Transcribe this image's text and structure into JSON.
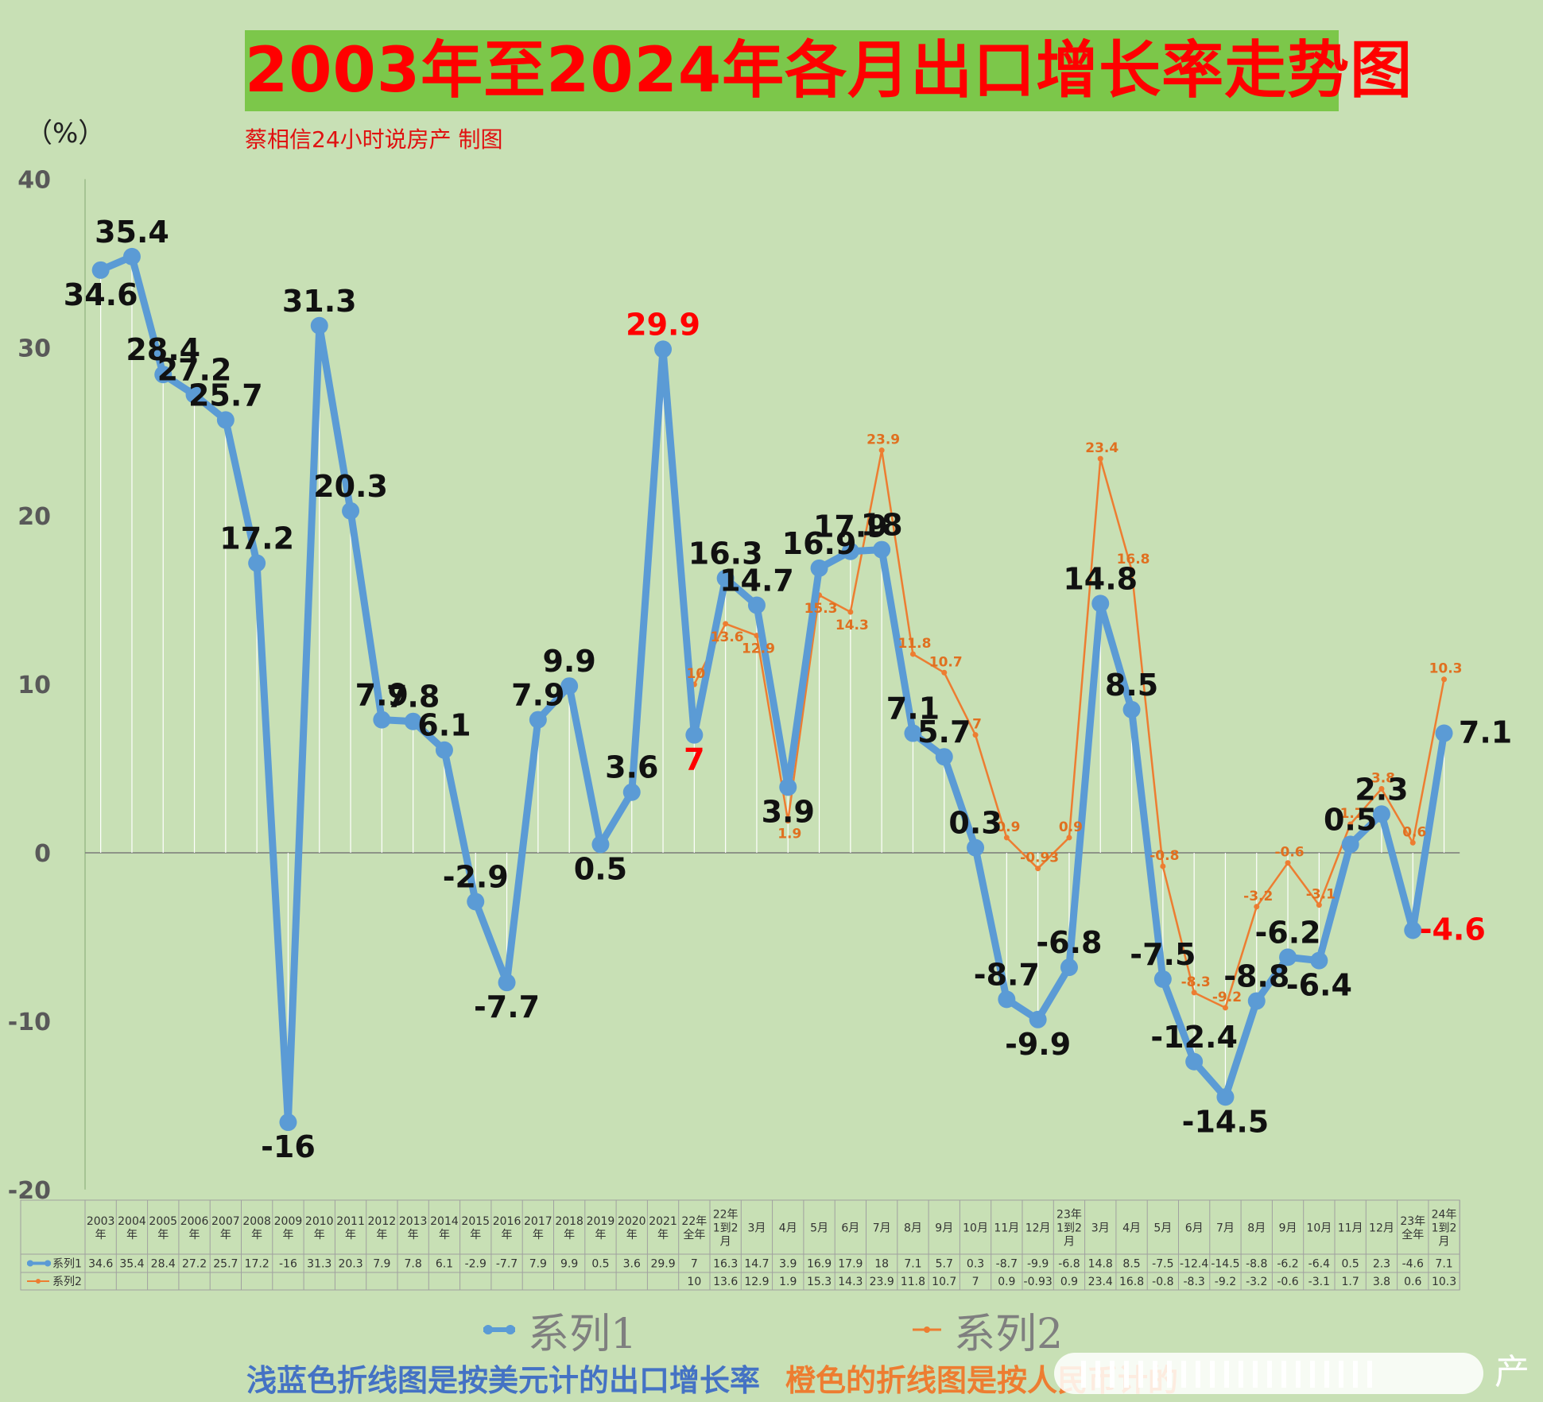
{
  "title": "2003年至2024年各月出口增长率走势图",
  "unit_label": "（%）",
  "credit": "蔡相信24小时说房产  制图",
  "notes": {
    "blue": "浅蓝色折线图是按美元计的出口增长率",
    "orange": "橙色的折线图是按人民币计的"
  },
  "watermark_char": "产",
  "colors": {
    "series1": "#5b9bd5",
    "series2": "#ed7d31",
    "title_bg": "#7cc74a",
    "title_text": "#ff0000",
    "background": "#c8e0b5",
    "highlight_label": "#ff0000"
  },
  "chart_data": {
    "type": "line",
    "title": "2003年至2024年各月出口增长率走势图",
    "ylabel": "（%）",
    "ylim": [
      -20,
      40
    ],
    "yticks": [
      -20,
      -10,
      0,
      10,
      20,
      30,
      40
    ],
    "grid": false,
    "category_lines": [
      "2003|年",
      "2004|年",
      "2005|年",
      "2006|年",
      "2007|年",
      "2008|年",
      "2009|年",
      "2010|年",
      "2011|年",
      "2012|年",
      "2013|年",
      "2014|年",
      "2015|年",
      "2016|年",
      "2017|年",
      "2018|年",
      "2019|年",
      "2020|年",
      "2021|年",
      "22年|全年",
      "22年|1到2|月",
      "3月",
      "4月",
      "5月",
      "6月",
      "7月",
      "8月",
      "9月",
      "10月",
      "11月",
      "12月",
      "23年|1到2|月",
      "3月",
      "4月",
      "5月",
      "6月",
      "7月",
      "8月",
      "9月",
      "10月",
      "11月",
      "12月",
      "23年|全年",
      "24年|1到2|月"
    ],
    "series": [
      {
        "name": "系列1",
        "values": [
          34.6,
          35.4,
          28.4,
          27.2,
          25.7,
          17.2,
          -16,
          31.3,
          20.3,
          7.9,
          7.8,
          6.1,
          -2.9,
          -7.7,
          7.9,
          9.9,
          0.5,
          3.6,
          29.9,
          7,
          16.3,
          14.7,
          3.9,
          16.9,
          17.9,
          18,
          7.1,
          5.7,
          0.3,
          -8.7,
          -9.9,
          -6.8,
          14.8,
          8.5,
          -7.5,
          -12.4,
          -14.5,
          -8.8,
          -6.2,
          -6.4,
          0.5,
          2.3,
          -4.6,
          7.1
        ],
        "table_values": [
          "34.6",
          "35.4",
          "28.4",
          "27.2",
          "25.7",
          "17.2",
          "-16",
          "31.3",
          "20.3",
          "7.9",
          "7.8",
          "6.1",
          "-2.9",
          "-7.7",
          "7.9",
          "9.9",
          "0.5",
          "3.6",
          "29.9",
          "7",
          "16.3",
          "14.7",
          "3.9",
          "16.9",
          "17.9",
          "18",
          "7.1",
          "5.7",
          "0.3",
          "-8.7",
          "-9.9",
          "-6.8",
          "14.8",
          "8.5",
          "-7.5",
          "-12.4",
          "-14.5",
          "-8.8",
          "-6.2",
          "-6.4",
          "0.5",
          "2.3",
          "-4.6",
          "7.1"
        ],
        "labels": [
          "34.6",
          "35.4",
          "28.4",
          "27.2",
          "25.7",
          "17.2",
          "-16",
          "31.3",
          "20.3",
          "7.9",
          "7.8",
          "6.1",
          "-2.9",
          "-7.7",
          "7.9",
          "9.9",
          "0.5",
          "3.6",
          "29.9",
          "7",
          "16.3",
          "14.7",
          "3.9",
          "16.9",
          "17.9",
          "18",
          "7.1",
          "5.7",
          "0.3",
          "-8.7",
          "-9.9",
          "-6.8",
          "14.8",
          "8.5",
          "-7.5",
          "-12.4",
          "-14.5",
          "-8.8",
          "-6.2",
          "-6.4",
          "0.5",
          "2.3",
          "-4.6",
          "7.1"
        ],
        "highlight_indices": [
          18,
          19,
          42
        ]
      },
      {
        "name": "系列2",
        "values": [
          null,
          null,
          null,
          null,
          null,
          null,
          null,
          null,
          null,
          null,
          null,
          null,
          null,
          null,
          null,
          null,
          null,
          null,
          null,
          10,
          13.6,
          12.9,
          1.9,
          15.3,
          14.3,
          23.9,
          11.8,
          10.7,
          7,
          0.9,
          -0.93,
          0.9,
          23.4,
          16.8,
          -0.8,
          -8.3,
          -9.2,
          -3.2,
          -0.6,
          -3.1,
          1.7,
          3.8,
          0.6,
          10.3
        ],
        "table_values": [
          "",
          "",
          "",
          "",
          "",
          "",
          "",
          "",
          "",
          "",
          "",
          "",
          "",
          "",
          "",
          "",
          "",
          "",
          "",
          "10",
          "13.6",
          "12.9",
          "1.9",
          "15.3",
          "14.3",
          "23.9",
          "11.8",
          "10.7",
          "7",
          "0.9",
          "-0.93",
          "0.9",
          "23.4",
          "16.8",
          "-0.8",
          "-8.3",
          "-9.2",
          "-3.2",
          "-0.6",
          "-3.1",
          "1.7",
          "3.8",
          "0.6",
          "10.3"
        ],
        "labels": [
          "",
          "",
          "",
          "",
          "",
          "",
          "",
          "",
          "",
          "",
          "",
          "",
          "",
          "",
          "",
          "",
          "",
          "",
          "",
          "10",
          "13.6",
          "12.9",
          "1.9",
          "15.3",
          "14.3",
          "23.9",
          "11.8",
          "10.7",
          "7",
          "0.9",
          "-0.93",
          "0.9",
          "23.4",
          "16.8",
          "-0.8",
          "-8.3",
          "-9.2",
          "-3.2",
          "-0.6",
          "-3.1",
          "1.7",
          "3.8",
          "0.6",
          "10.3"
        ]
      }
    ],
    "legend": [
      {
        "name": "系列1",
        "color": "#5b9bd5"
      },
      {
        "name": "系列2",
        "color": "#ed7d31"
      }
    ],
    "legend_position": "bottom",
    "data_table": true
  }
}
